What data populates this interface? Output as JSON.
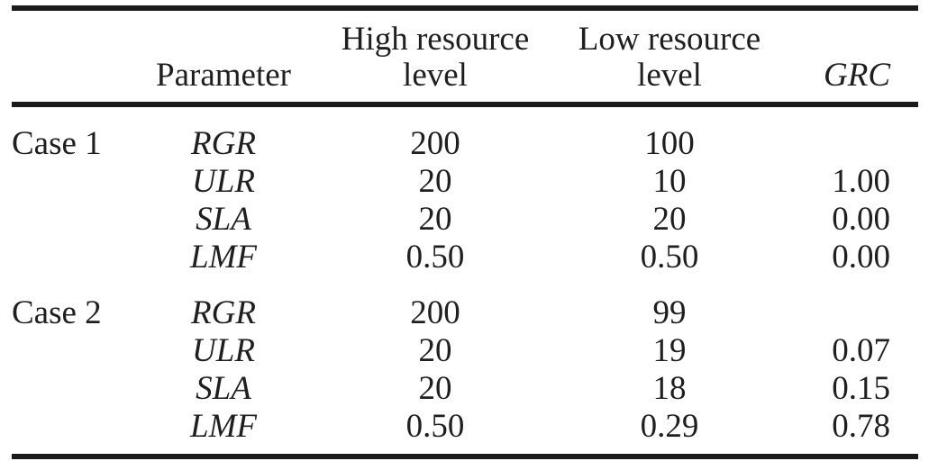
{
  "page": {
    "background_color": "#ffffff",
    "text_color": "#1f1f1f",
    "rule_color": "#1b1b1b"
  },
  "table": {
    "header": {
      "case": "",
      "parameter": "Parameter",
      "high_line1": "High resource",
      "high_line2": "level",
      "low_line1": "Low resource",
      "low_line2": "level",
      "grc": "GRC"
    },
    "rows": [
      {
        "case": "Case 1",
        "parameter": "RGR",
        "high": "200",
        "low": "100",
        "grc": ""
      },
      {
        "case": "",
        "parameter": "ULR",
        "high": "20",
        "low": "10",
        "grc": "1.00"
      },
      {
        "case": "",
        "parameter": "SLA",
        "high": "20",
        "low": "20",
        "grc": "0.00"
      },
      {
        "case": "",
        "parameter": "LMF",
        "high": "0.50",
        "low": "0.50",
        "grc": "0.00"
      },
      {
        "case": "Case 2",
        "parameter": "RGR",
        "high": "200",
        "low": "99",
        "grc": ""
      },
      {
        "case": "",
        "parameter": "ULR",
        "high": "20",
        "low": "19",
        "grc": "0.07"
      },
      {
        "case": "",
        "parameter": "SLA",
        "high": "20",
        "low": "18",
        "grc": "0.15"
      },
      {
        "case": "",
        "parameter": "LMF",
        "high": "0.50",
        "low": "0.29",
        "grc": "0.78"
      }
    ]
  }
}
